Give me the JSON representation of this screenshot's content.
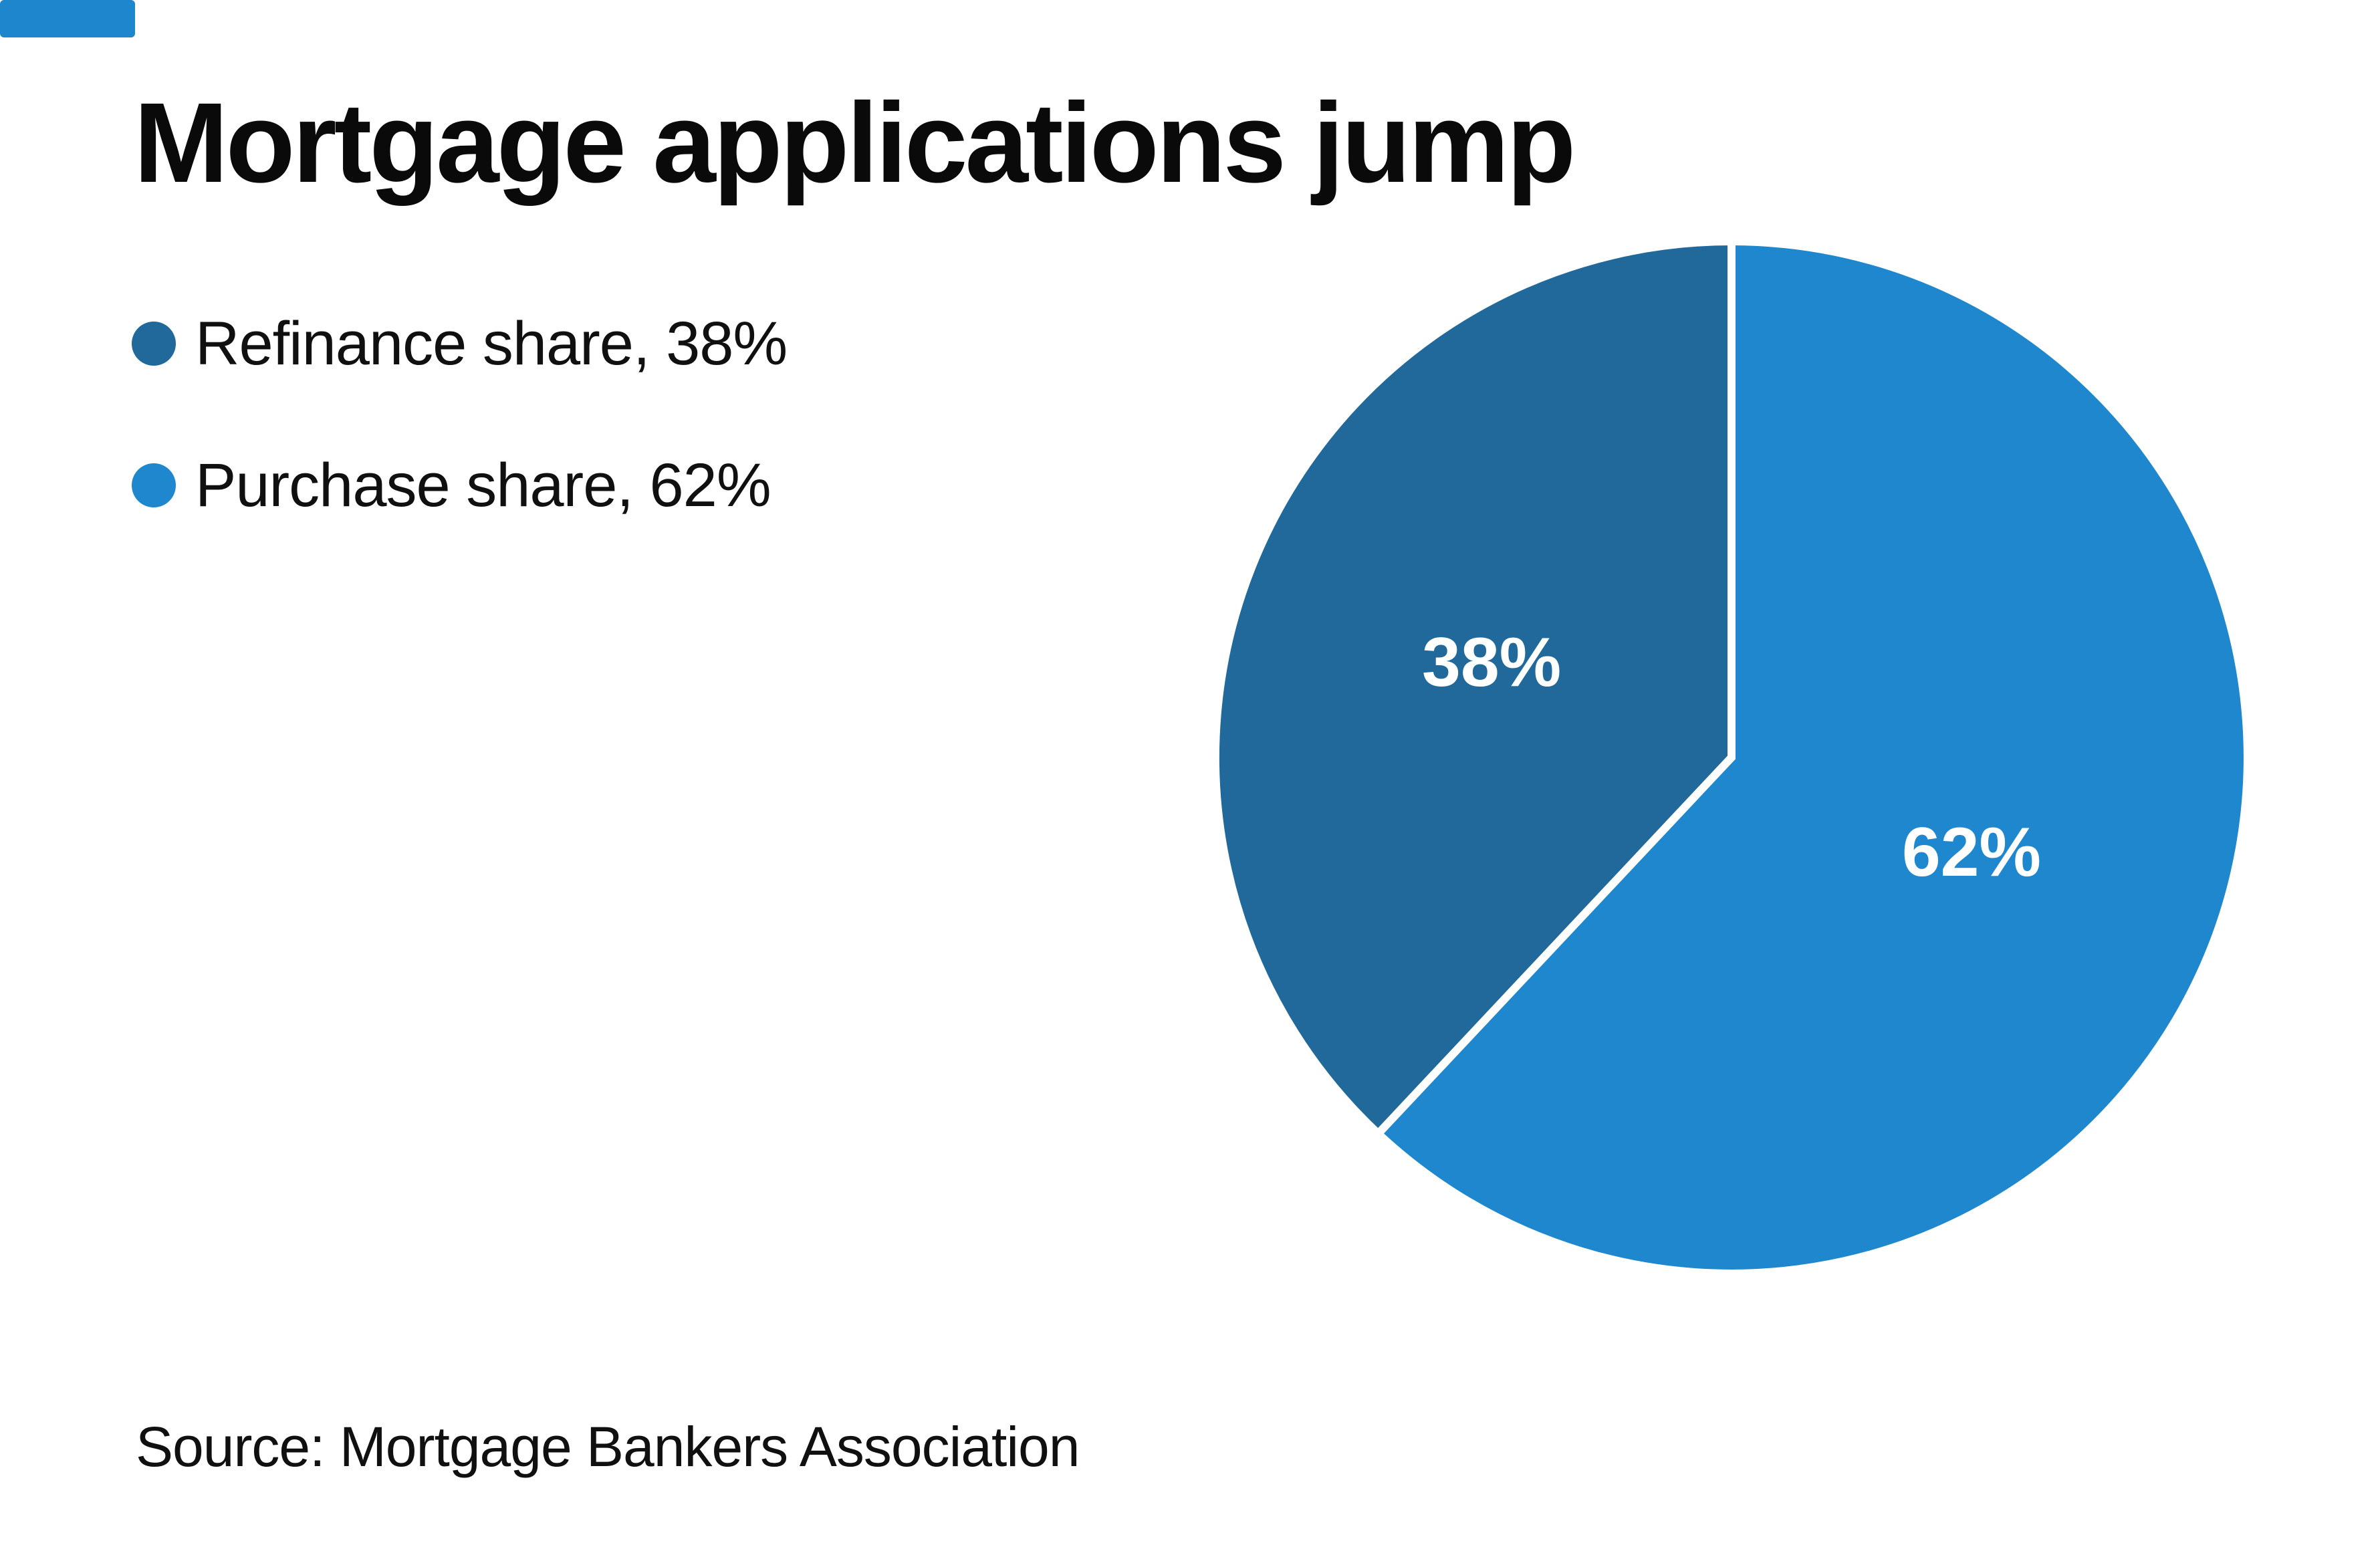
{
  "title": "Mortgage applications jump",
  "source_note": "Source: Mortgage Bankers Association",
  "brand_accent": {
    "visible": true,
    "color": "#1e86cd"
  },
  "legend": {
    "position": "left",
    "items": [
      {
        "label": "Refinance share, 38%",
        "color": "#20699a"
      },
      {
        "label": "Purchase share, 62%",
        "color": "#1e87ce"
      }
    ]
  },
  "chart_data": {
    "type": "pie",
    "title": "Mortgage applications jump",
    "source": "Mortgage Bankers Association",
    "unit": "%",
    "total": 100,
    "slices": [
      {
        "name": "Refinance share",
        "value": 38,
        "label": "38%",
        "color": "#20699a"
      },
      {
        "name": "Purchase share",
        "value": 62,
        "label": "62%",
        "color": "#1e87ce"
      }
    ],
    "layout": {
      "start_angle": "12 o'clock",
      "winding": "refinance drawn counter-clockwise from top (left side), purchase fills right side",
      "divider_color": "#ffffff",
      "divider_width": 12,
      "label_color": "#ffffff",
      "labels_inside": true,
      "legend_position": "upper-left",
      "grid": false
    }
  }
}
